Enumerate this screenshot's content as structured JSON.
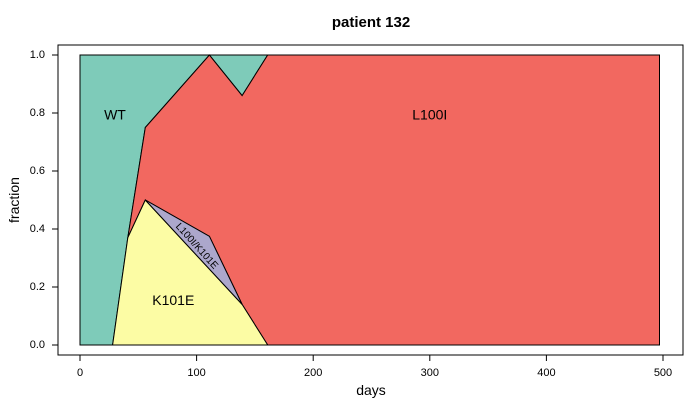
{
  "chart_data": {
    "type": "area",
    "title": "patient 132",
    "xlabel": "days",
    "ylabel": "fraction",
    "xlim": [
      0,
      500
    ],
    "ylim": [
      0,
      1
    ],
    "x_ticks": [
      "0",
      "100",
      "200",
      "300",
      "400",
      "500"
    ],
    "y_ticks": [
      "0.0",
      "0.2",
      "0.4",
      "0.6",
      "0.8",
      "1.0"
    ],
    "grid": false,
    "series": [
      {
        "name": "WT",
        "color": "#7ecbb9",
        "label_at": [
          30,
          0.79
        ],
        "polygon": [
          [
            0,
            0
          ],
          [
            28,
            0
          ],
          [
            41,
            0.37
          ],
          [
            56,
            0.75
          ],
          [
            111,
            1.0
          ],
          [
            139,
            0.86
          ],
          [
            161,
            1.0
          ],
          [
            0,
            1.0
          ]
        ]
      },
      {
        "name": "L100I",
        "color": "#f26860",
        "label_at": [
          300,
          0.79
        ],
        "polygon": [
          [
            41,
            0.37
          ],
          [
            56,
            0.5
          ],
          [
            111,
            0.375
          ],
          [
            139,
            0.14
          ],
          [
            161,
            0
          ],
          [
            497,
            0
          ],
          [
            497,
            1.0
          ],
          [
            161,
            1.0
          ],
          [
            139,
            0.86
          ],
          [
            111,
            1.0
          ],
          [
            56,
            0.75
          ]
        ]
      },
      {
        "name": "K101E",
        "color": "#fcfca4",
        "label_at": [
          80,
          0.15
        ],
        "polygon": [
          [
            28,
            0
          ],
          [
            41,
            0.37
          ],
          [
            56,
            0.5
          ],
          [
            139,
            0.14
          ],
          [
            161,
            0
          ]
        ]
      },
      {
        "name": "L100I/K101E",
        "color": "#aca7cc",
        "label_at": [
          100,
          0.34
        ],
        "label_rotate": 48,
        "small_label": true,
        "polygon": [
          [
            56,
            0.5
          ],
          [
            111,
            0.375
          ],
          [
            139,
            0.14
          ]
        ]
      }
    ]
  }
}
